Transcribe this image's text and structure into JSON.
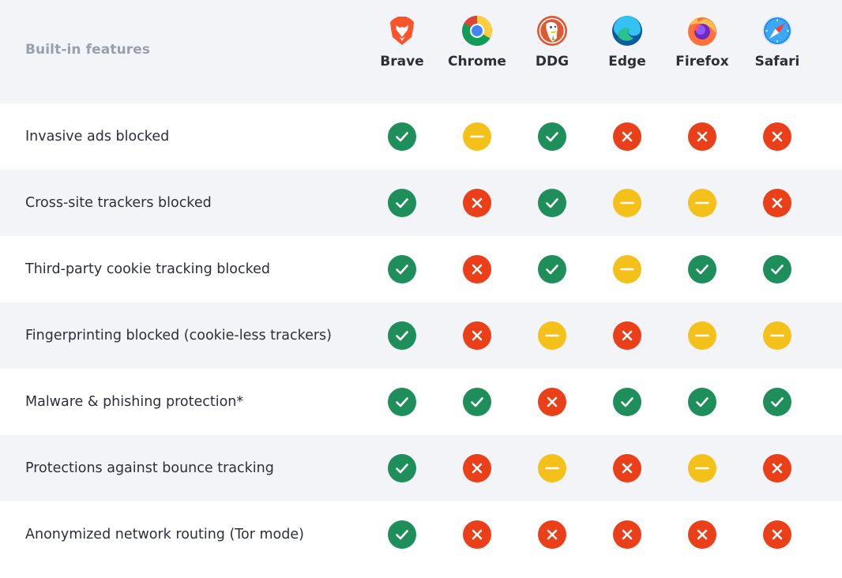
{
  "header": {
    "title": "Built-in features"
  },
  "browsers": [
    {
      "name": "Brave",
      "logo": "brave-logo-icon"
    },
    {
      "name": "Chrome",
      "logo": "chrome-logo-icon"
    },
    {
      "name": "DDG",
      "logo": "duckduckgo-logo-icon"
    },
    {
      "name": "Edge",
      "logo": "edge-logo-icon"
    },
    {
      "name": "Firefox",
      "logo": "firefox-logo-icon"
    },
    {
      "name": "Safari",
      "logo": "safari-logo-icon"
    }
  ],
  "status_legend": {
    "yes": {
      "icon": "check-circle-icon",
      "color": "#1e8e5a"
    },
    "partial": {
      "icon": "minus-circle-icon",
      "color": "#f4c11b"
    },
    "no": {
      "icon": "x-circle-icon",
      "color": "#ea3f19"
    }
  },
  "rows": [
    {
      "feature": "Invasive ads blocked",
      "status": [
        "yes",
        "partial",
        "yes",
        "no",
        "no",
        "no"
      ]
    },
    {
      "feature": "Cross-site trackers blocked",
      "status": [
        "yes",
        "no",
        "yes",
        "partial",
        "partial",
        "no"
      ]
    },
    {
      "feature": "Third-party cookie tracking blocked",
      "status": [
        "yes",
        "no",
        "yes",
        "partial",
        "yes",
        "yes"
      ]
    },
    {
      "feature": "Fingerprinting blocked (cookie-less trackers)",
      "status": [
        "yes",
        "no",
        "partial",
        "no",
        "partial",
        "partial"
      ]
    },
    {
      "feature": "Malware & phishing protection*",
      "status": [
        "yes",
        "yes",
        "no",
        "yes",
        "yes",
        "yes"
      ]
    },
    {
      "feature": "Protections against bounce tracking",
      "status": [
        "yes",
        "no",
        "partial",
        "no",
        "partial",
        "no"
      ]
    },
    {
      "feature": "Anonymized network routing (Tor mode)",
      "status": [
        "yes",
        "no",
        "no",
        "no",
        "no",
        "no"
      ]
    }
  ]
}
